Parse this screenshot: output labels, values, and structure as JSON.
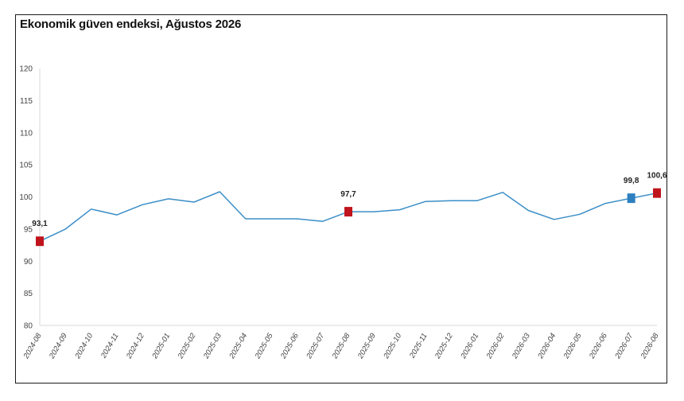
{
  "chart_data": {
    "type": "line",
    "title": "Ekonomik güven endeksi, Ağustos 2026",
    "xlabel": "",
    "ylabel": "",
    "ylim": [
      80,
      120
    ],
    "yticks": [
      "80",
      "85",
      "90",
      "95",
      "100",
      "105",
      "110",
      "115",
      "120"
    ],
    "grid": false,
    "categories": [
      "2024-08",
      "2024-09",
      "2024-10",
      "2024-11",
      "2024-12",
      "2025-01",
      "2025-02",
      "2025-03",
      "2025-04",
      "2025-05",
      "2025-06",
      "2025-07",
      "2025-08",
      "2025-09",
      "2025-10",
      "2025-11",
      "2025-12",
      "2026-01",
      "2026-02",
      "2026-03",
      "2026-04",
      "2026-05",
      "2026-06",
      "2026-07",
      "2026-08"
    ],
    "series": [
      {
        "values": [
          93.1,
          95.0,
          98.1,
          97.2,
          98.8,
          99.7,
          99.2,
          100.8,
          96.6,
          96.6,
          96.6,
          96.2,
          97.7,
          97.7,
          98.0,
          99.3,
          99.4,
          99.4,
          100.7,
          97.9,
          96.5,
          97.3,
          99.0,
          99.8,
          100.6
        ],
        "color": "#3b8ec7"
      }
    ],
    "markers": [
      {
        "index": 0,
        "label": "93,1",
        "color": "#c0141c"
      },
      {
        "index": 12,
        "label": "97,7",
        "color": "#c0141c"
      },
      {
        "index": 23,
        "label": "99,8",
        "color": "#2e7fc0"
      },
      {
        "index": 24,
        "label": "100,6",
        "color": "#c0141c"
      }
    ]
  }
}
